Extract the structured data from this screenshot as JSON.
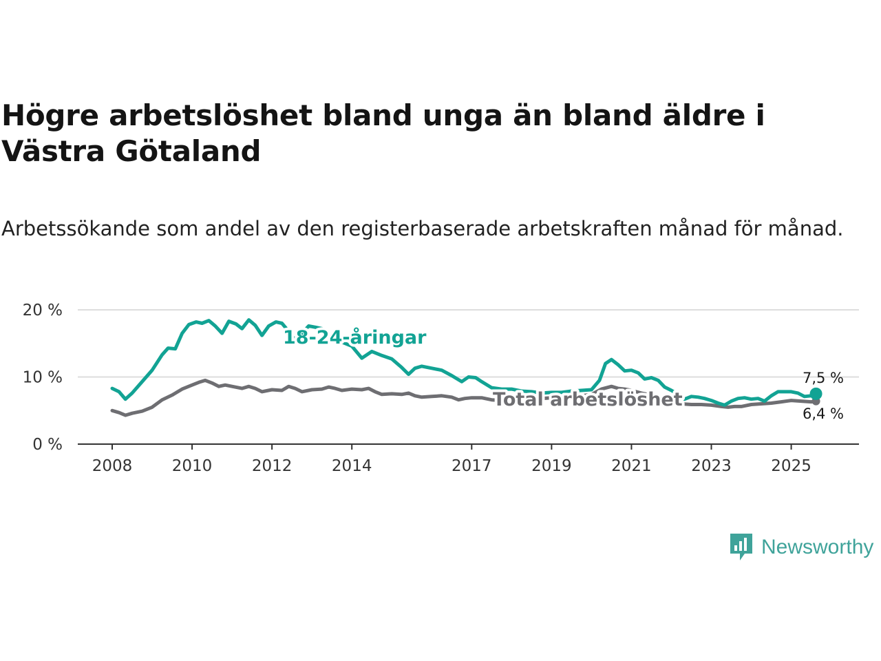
{
  "title": "Högre arbetslöshet bland unga än bland äldre i Västra Götaland",
  "subtitle": "Arbetssökande som andel av den registerbaserade arbetskraften månad för månad.",
  "brand": {
    "name": "Newsworthy",
    "icon": "newsworthy-logo-icon"
  },
  "colors": {
    "youth": "#12a394",
    "total": "#6e6e72",
    "grid": "#dddddd",
    "axis": "#333333"
  },
  "chart_data": {
    "type": "line",
    "ylim": [
      0,
      20
    ],
    "y_ticks": [
      {
        "value": 0,
        "label": "0 %"
      },
      {
        "value": 10,
        "label": "10 %"
      },
      {
        "value": 20,
        "label": "20 %"
      }
    ],
    "x_range": [
      2008.0,
      2025.8
    ],
    "x_ticks": [
      {
        "value": 2008,
        "label": "2008"
      },
      {
        "value": 2010,
        "label": "2010"
      },
      {
        "value": 2012,
        "label": "2012"
      },
      {
        "value": 2014,
        "label": "2014"
      },
      {
        "value": 2017,
        "label": "2017"
      },
      {
        "value": 2019,
        "label": "2019"
      },
      {
        "value": 2021,
        "label": "2021"
      },
      {
        "value": 2023,
        "label": "2023"
      },
      {
        "value": 2025,
        "label": "2025"
      }
    ],
    "series": [
      {
        "name": "18-24-åringar",
        "color": "#12a394",
        "end_label": "7,5 %",
        "points": [
          [
            2008.0,
            8.3
          ],
          [
            2008.17,
            7.8
          ],
          [
            2008.33,
            6.7
          ],
          [
            2008.5,
            7.6
          ],
          [
            2008.75,
            9.3
          ],
          [
            2009.0,
            11.0
          ],
          [
            2009.25,
            13.3
          ],
          [
            2009.4,
            14.3
          ],
          [
            2009.58,
            14.2
          ],
          [
            2009.75,
            16.5
          ],
          [
            2009.92,
            17.8
          ],
          [
            2010.1,
            18.2
          ],
          [
            2010.25,
            18.0
          ],
          [
            2010.42,
            18.4
          ],
          [
            2010.58,
            17.6
          ],
          [
            2010.75,
            16.5
          ],
          [
            2010.92,
            18.3
          ],
          [
            2011.1,
            17.9
          ],
          [
            2011.25,
            17.2
          ],
          [
            2011.42,
            18.5
          ],
          [
            2011.58,
            17.7
          ],
          [
            2011.75,
            16.2
          ],
          [
            2011.92,
            17.6
          ],
          [
            2012.1,
            18.2
          ],
          [
            2012.25,
            18.0
          ],
          [
            2012.42,
            16.8
          ],
          [
            2012.58,
            15.5
          ],
          [
            2012.75,
            16.5
          ],
          [
            2012.92,
            17.6
          ],
          [
            2013.1,
            17.4
          ],
          [
            2013.25,
            17.2
          ],
          [
            2013.5,
            15.4
          ],
          [
            2013.75,
            15.2
          ],
          [
            2014.0,
            14.6
          ],
          [
            2014.25,
            12.8
          ],
          [
            2014.5,
            13.8
          ],
          [
            2014.75,
            13.2
          ],
          [
            2015.0,
            12.7
          ],
          [
            2015.25,
            11.4
          ],
          [
            2015.42,
            10.4
          ],
          [
            2015.58,
            11.3
          ],
          [
            2015.75,
            11.6
          ],
          [
            2016.0,
            11.3
          ],
          [
            2016.25,
            11.0
          ],
          [
            2016.5,
            10.2
          ],
          [
            2016.75,
            9.3
          ],
          [
            2016.92,
            10.0
          ],
          [
            2017.1,
            9.9
          ],
          [
            2017.25,
            9.3
          ],
          [
            2017.5,
            8.4
          ],
          [
            2017.75,
            8.2
          ],
          [
            2018.0,
            8.2
          ],
          [
            2018.25,
            7.9
          ],
          [
            2018.5,
            7.8
          ],
          [
            2018.75,
            7.6
          ],
          [
            2019.0,
            7.7
          ],
          [
            2019.25,
            7.7
          ],
          [
            2019.5,
            7.9
          ],
          [
            2019.75,
            8.0
          ],
          [
            2020.0,
            8.1
          ],
          [
            2020.2,
            9.5
          ],
          [
            2020.35,
            12.0
          ],
          [
            2020.5,
            12.6
          ],
          [
            2020.67,
            11.8
          ],
          [
            2020.83,
            10.9
          ],
          [
            2021.0,
            11.0
          ],
          [
            2021.17,
            10.6
          ],
          [
            2021.33,
            9.7
          ],
          [
            2021.5,
            9.9
          ],
          [
            2021.67,
            9.5
          ],
          [
            2021.83,
            8.5
          ],
          [
            2022.0,
            8.0
          ],
          [
            2022.17,
            7.4
          ],
          [
            2022.33,
            6.7
          ],
          [
            2022.5,
            7.1
          ],
          [
            2022.67,
            7.0
          ],
          [
            2022.83,
            6.8
          ],
          [
            2023.0,
            6.5
          ],
          [
            2023.17,
            6.1
          ],
          [
            2023.33,
            5.8
          ],
          [
            2023.5,
            6.4
          ],
          [
            2023.67,
            6.8
          ],
          [
            2023.83,
            6.9
          ],
          [
            2024.0,
            6.7
          ],
          [
            2024.17,
            6.8
          ],
          [
            2024.33,
            6.4
          ],
          [
            2024.5,
            7.2
          ],
          [
            2024.67,
            7.8
          ],
          [
            2024.83,
            7.8
          ],
          [
            2025.0,
            7.8
          ],
          [
            2025.17,
            7.6
          ],
          [
            2025.33,
            7.1
          ],
          [
            2025.5,
            7.2
          ],
          [
            2025.62,
            7.5
          ]
        ]
      },
      {
        "name": "Total arbetslöshet",
        "color": "#6e6e72",
        "end_label": "6,4 %",
        "points": [
          [
            2008.0,
            5.0
          ],
          [
            2008.17,
            4.7
          ],
          [
            2008.33,
            4.3
          ],
          [
            2008.5,
            4.6
          ],
          [
            2008.75,
            4.9
          ],
          [
            2009.0,
            5.5
          ],
          [
            2009.25,
            6.6
          ],
          [
            2009.5,
            7.3
          ],
          [
            2009.75,
            8.2
          ],
          [
            2010.0,
            8.8
          ],
          [
            2010.17,
            9.2
          ],
          [
            2010.33,
            9.5
          ],
          [
            2010.5,
            9.1
          ],
          [
            2010.67,
            8.6
          ],
          [
            2010.83,
            8.8
          ],
          [
            2011.0,
            8.6
          ],
          [
            2011.25,
            8.3
          ],
          [
            2011.42,
            8.6
          ],
          [
            2011.58,
            8.3
          ],
          [
            2011.75,
            7.8
          ],
          [
            2012.0,
            8.1
          ],
          [
            2012.25,
            8.0
          ],
          [
            2012.42,
            8.6
          ],
          [
            2012.58,
            8.3
          ],
          [
            2012.75,
            7.8
          ],
          [
            2013.0,
            8.1
          ],
          [
            2013.25,
            8.2
          ],
          [
            2013.42,
            8.5
          ],
          [
            2013.58,
            8.3
          ],
          [
            2013.75,
            8.0
          ],
          [
            2014.0,
            8.2
          ],
          [
            2014.25,
            8.1
          ],
          [
            2014.42,
            8.3
          ],
          [
            2014.58,
            7.8
          ],
          [
            2014.75,
            7.4
          ],
          [
            2015.0,
            7.5
          ],
          [
            2015.25,
            7.4
          ],
          [
            2015.42,
            7.6
          ],
          [
            2015.58,
            7.2
          ],
          [
            2015.75,
            7.0
          ],
          [
            2016.0,
            7.1
          ],
          [
            2016.25,
            7.2
          ],
          [
            2016.5,
            7.0
          ],
          [
            2016.67,
            6.6
          ],
          [
            2016.83,
            6.8
          ],
          [
            2017.0,
            6.9
          ],
          [
            2017.25,
            6.9
          ],
          [
            2017.5,
            6.6
          ],
          [
            2017.75,
            6.5
          ],
          [
            2018.0,
            6.7
          ],
          [
            2018.25,
            6.6
          ],
          [
            2018.5,
            6.7
          ],
          [
            2018.75,
            6.8
          ],
          [
            2019.0,
            6.9
          ],
          [
            2019.25,
            7.0
          ],
          [
            2019.5,
            7.1
          ],
          [
            2019.75,
            7.2
          ],
          [
            2020.0,
            7.4
          ],
          [
            2020.25,
            8.2
          ],
          [
            2020.5,
            8.6
          ],
          [
            2020.67,
            8.3
          ],
          [
            2020.83,
            8.2
          ],
          [
            2021.0,
            8.0
          ],
          [
            2021.25,
            7.6
          ],
          [
            2021.5,
            7.3
          ],
          [
            2021.75,
            6.8
          ],
          [
            2022.0,
            6.4
          ],
          [
            2022.25,
            6.0
          ],
          [
            2022.5,
            5.9
          ],
          [
            2022.75,
            5.9
          ],
          [
            2023.0,
            5.8
          ],
          [
            2023.25,
            5.6
          ],
          [
            2023.42,
            5.5
          ],
          [
            2023.58,
            5.6
          ],
          [
            2023.75,
            5.6
          ],
          [
            2024.0,
            5.9
          ],
          [
            2024.25,
            6.0
          ],
          [
            2024.5,
            6.1
          ],
          [
            2024.75,
            6.3
          ],
          [
            2025.0,
            6.5
          ],
          [
            2025.25,
            6.4
          ],
          [
            2025.5,
            6.3
          ],
          [
            2025.62,
            6.4
          ]
        ]
      }
    ]
  }
}
